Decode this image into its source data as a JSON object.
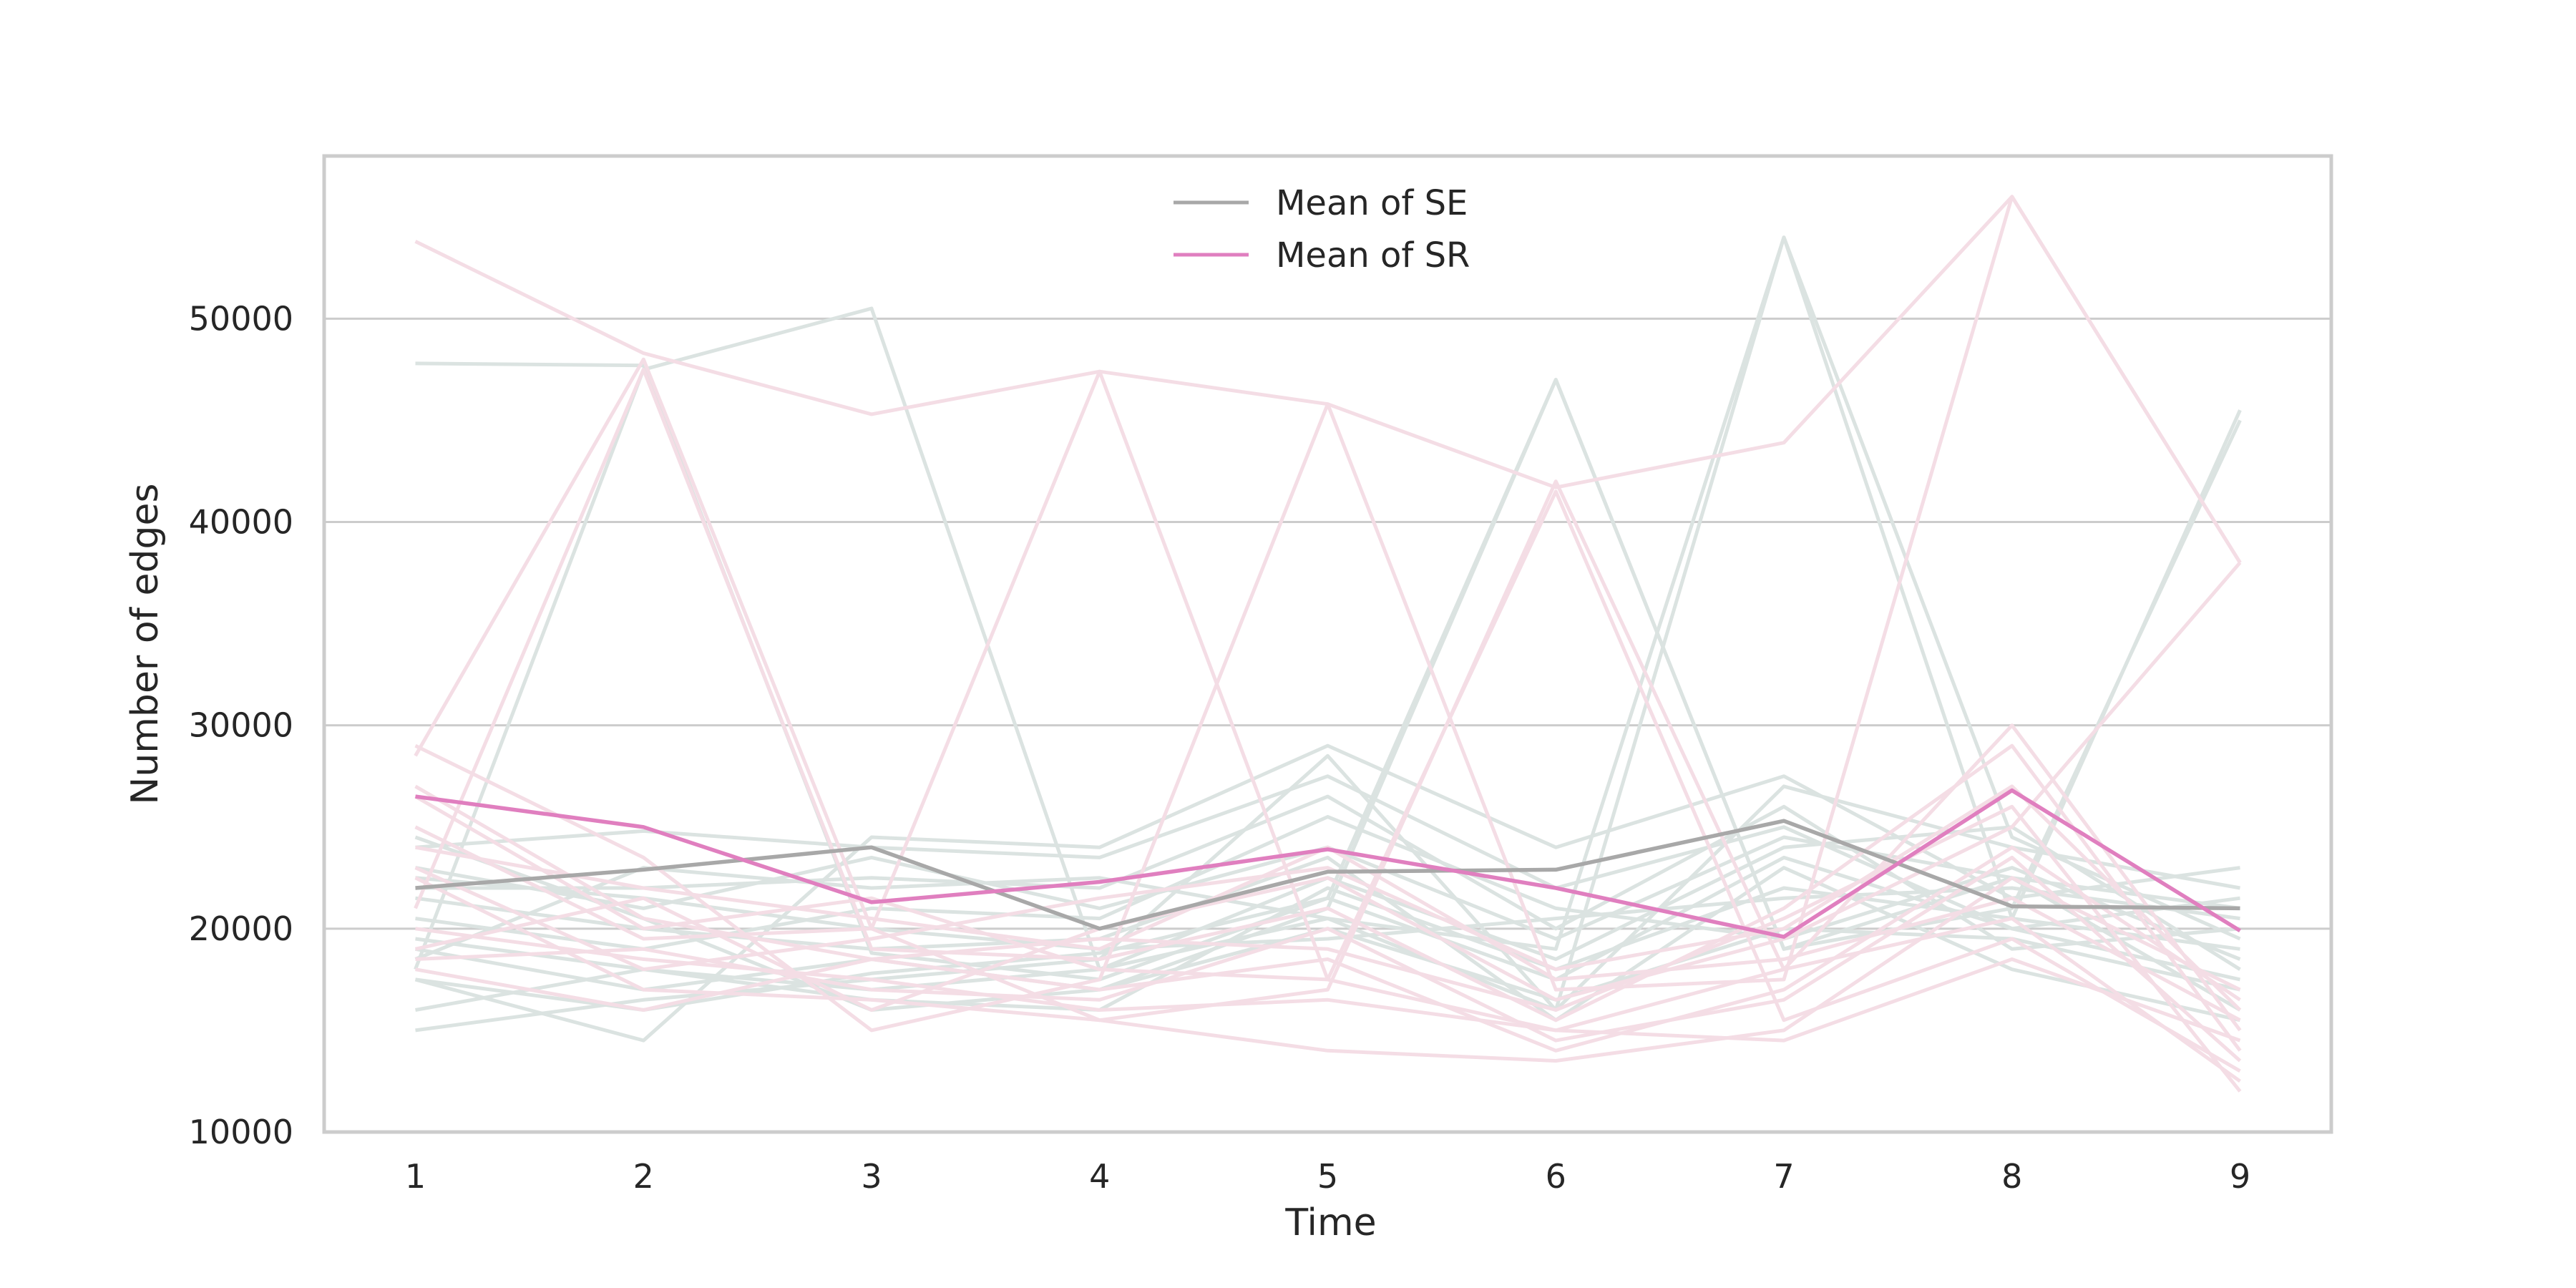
{
  "colors": {
    "background": "#ffffff",
    "grid": "#cccccc",
    "frame": "#cccccc",
    "se_individual": "#dbe3e1",
    "sr_individual": "#f4dde5",
    "se_mean": "#a8a8a8",
    "sr_mean": "#e07fbf"
  },
  "chart_data": {
    "type": "line",
    "title": "",
    "xlabel": "Time",
    "ylabel": "Number of edges",
    "x": [
      1,
      2,
      3,
      4,
      5,
      6,
      7,
      8,
      9
    ],
    "xlim": [
      0.6,
      9.4
    ],
    "ylim": [
      10000,
      58000
    ],
    "yticks": [
      10000,
      20000,
      30000,
      40000,
      50000
    ],
    "xticks": [
      1,
      2,
      3,
      4,
      5,
      6,
      7,
      8,
      9
    ],
    "grid": "horizontal",
    "legend_position": "top-center",
    "series": [
      {
        "name": "Mean of SE",
        "role": "mean",
        "group": "SE",
        "values": [
          22000,
          22900,
          24000,
          20000,
          22800,
          22900,
          25300,
          21100,
          21000
        ]
      },
      {
        "name": "Mean of SR",
        "role": "mean",
        "group": "SR",
        "values": [
          26500,
          25000,
          21300,
          22300,
          23900,
          22000,
          19600,
          26800,
          19900
        ]
      }
    ],
    "individual_series": {
      "SE": [
        [
          47800,
          47700,
          18800,
          17500,
          21500,
          47000,
          19000,
          22500,
          21000
        ],
        [
          18000,
          47500,
          50500,
          18000,
          20500,
          16000,
          54000,
          20500,
          45500
        ],
        [
          17500,
          14500,
          24500,
          24000,
          29000,
          24000,
          27500,
          21500,
          23000
        ],
        [
          15000,
          16500,
          17500,
          18500,
          28500,
          16000,
          27000,
          24000,
          22000
        ],
        [
          24000,
          24800,
          24000,
          23500,
          27500,
          22000,
          25000,
          20000,
          21500
        ],
        [
          22000,
          22000,
          22500,
          22000,
          26500,
          20000,
          26000,
          19000,
          20000
        ],
        [
          19500,
          18000,
          16500,
          16000,
          22000,
          18000,
          22000,
          20500,
          19000
        ],
        [
          17500,
          16000,
          17800,
          18800,
          21500,
          17500,
          23500,
          20000,
          17500
        ],
        [
          23000,
          21000,
          23500,
          21000,
          24000,
          19500,
          24500,
          22500,
          16000
        ],
        [
          21500,
          20000,
          19000,
          19500,
          23500,
          15500,
          23000,
          18000,
          15500
        ],
        [
          20500,
          19000,
          21000,
          20500,
          25500,
          21000,
          19500,
          23000,
          18500
        ],
        [
          24500,
          20500,
          16000,
          17000,
          20000,
          16500,
          20000,
          19500,
          17000
        ],
        [
          19000,
          17000,
          18500,
          17000,
          21000,
          47000,
          19000,
          21000,
          45000
        ],
        [
          18500,
          23000,
          22000,
          22500,
          20500,
          19000,
          54000,
          24500,
          19500
        ],
        [
          22500,
          21500,
          20000,
          19000,
          19500,
          20500,
          21500,
          22000,
          20500
        ],
        [
          16000,
          18000,
          17000,
          18000,
          22500,
          18500,
          24000,
          25000,
          18000
        ]
      ],
      "SR": [
        [
          53800,
          48300,
          45300,
          47400,
          45800,
          41700,
          43900,
          56000,
          38000
        ],
        [
          28500,
          48000,
          20000,
          15500,
          17000,
          42000,
          18000,
          30000,
          15000
        ],
        [
          29000,
          23500,
          15000,
          17500,
          45800,
          17000,
          17500,
          56000,
          38000
        ],
        [
          25000,
          19500,
          20000,
          47400,
          17500,
          41500,
          15500,
          19500,
          13000
        ],
        [
          21000,
          47500,
          19000,
          18500,
          21000,
          15500,
          21000,
          29000,
          14000
        ],
        [
          18000,
          16000,
          18500,
          19500,
          19000,
          16000,
          20500,
          26000,
          12000
        ],
        [
          27000,
          20500,
          18500,
          17000,
          18500,
          14000,
          17000,
          24000,
          16500
        ],
        [
          22500,
          17000,
          16500,
          15500,
          14000,
          13500,
          15000,
          22500,
          17000
        ],
        [
          20000,
          18500,
          17500,
          16000,
          16500,
          15000,
          14500,
          18500,
          14500
        ],
        [
          19000,
          21500,
          16000,
          20000,
          22500,
          16500,
          19500,
          25000,
          38000
        ],
        [
          24000,
          22000,
          20500,
          19000,
          24000,
          17500,
          18500,
          21500,
          15500
        ],
        [
          18500,
          19000,
          17000,
          16500,
          20000,
          14500,
          16500,
          23500,
          13500
        ],
        [
          23000,
          18000,
          19500,
          21500,
          23000,
          18000,
          20000,
          27000,
          16000
        ],
        [
          26500,
          20000,
          21500,
          18000,
          17500,
          15000,
          18000,
          20500,
          12500
        ]
      ]
    },
    "legend": [
      "Mean of SE",
      "Mean of SR"
    ]
  }
}
